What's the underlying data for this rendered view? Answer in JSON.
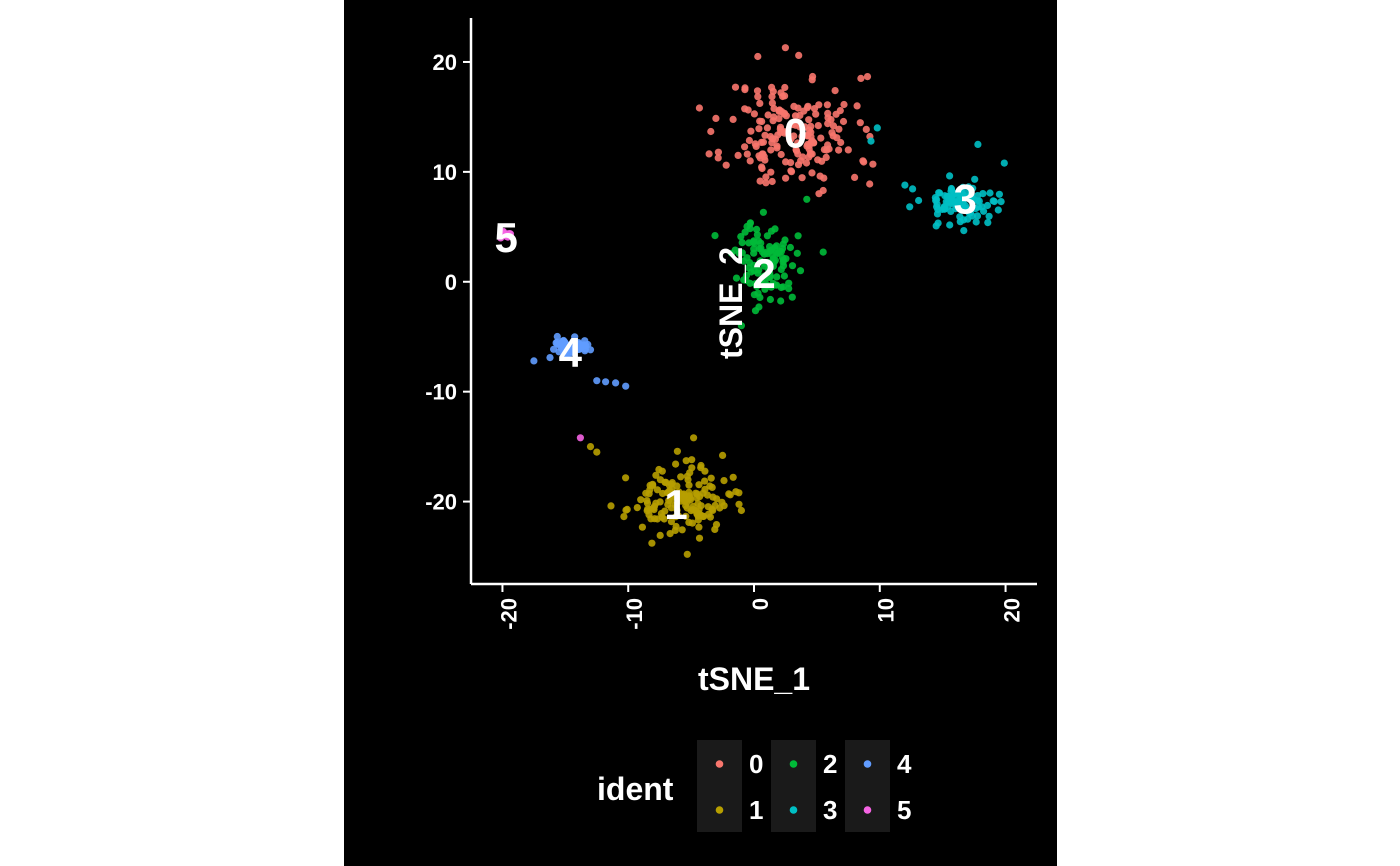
{
  "chart_data": {
    "type": "scatter",
    "xlabel": "tSNE_1",
    "ylabel": "tSNE_2",
    "xlim": [
      -22.5,
      22.5
    ],
    "ylim": [
      -27.5,
      24
    ],
    "x_ticks": [
      -20,
      -10,
      0,
      10,
      20
    ],
    "y_ticks": [
      -20,
      -10,
      0,
      10,
      20
    ],
    "x_tick_labels": [
      "-20",
      "-10",
      "0",
      "10",
      "20"
    ],
    "y_tick_labels": [
      "-20",
      "-10",
      "0",
      "10",
      "20"
    ],
    "grid": false,
    "legend": {
      "title": "ident",
      "position": "bottom"
    },
    "series": [
      {
        "name": "0",
        "color": "#F8766D",
        "label_pos": [
          3.3,
          13.5
        ],
        "center": [
          3.0,
          13.5
        ],
        "spread": [
          4.2,
          4.2
        ],
        "n": 170,
        "seed": 11,
        "points": [
          [
            2.5,
            21.3
          ],
          [
            0.3,
            20.5
          ],
          [
            8.5,
            18.5
          ],
          [
            8.2,
            16
          ],
          [
            7.5,
            12
          ],
          [
            9.2,
            8.9
          ],
          [
            -0.3,
            11
          ],
          [
            5.5,
            8.3
          ],
          [
            8.0,
            9.5
          ]
        ]
      },
      {
        "name": "1",
        "color": "#B79F00",
        "label_pos": [
          -6.2,
          -20.3
        ],
        "center": [
          -6.0,
          -20.0
        ],
        "spread": [
          3.2,
          2.4
        ],
        "n": 150,
        "seed": 23,
        "points": [
          [
            -13.0,
            -15.0
          ],
          [
            -12.5,
            -15.5
          ],
          [
            -2.5,
            -15.8
          ],
          [
            -2.0,
            -19.3
          ],
          [
            -1.2,
            -19.2
          ],
          [
            -5.3,
            -24.8
          ],
          [
            -4.8,
            -14.2
          ]
        ]
      },
      {
        "name": "2",
        "color": "#00BA38",
        "label_pos": [
          0.8,
          0.7
        ],
        "center": [
          1.0,
          1.8
        ],
        "spread": [
          1.9,
          3.0
        ],
        "n": 110,
        "seed": 37,
        "points": [
          [
            -3.1,
            4.2
          ],
          [
            5.5,
            2.7
          ],
          [
            -1.0,
            -4.0
          ],
          [
            4.2,
            7.5
          ]
        ]
      },
      {
        "name": "3",
        "color": "#00BFC4",
        "label_pos": [
          16.8,
          7.5
        ],
        "center": [
          16.5,
          7.3
        ],
        "spread": [
          2.5,
          1.5
        ],
        "n": 100,
        "seed": 53,
        "points": [
          [
            12.0,
            8.8
          ],
          [
            17.8,
            12.5
          ],
          [
            9.8,
            14.0
          ],
          [
            9.3,
            12.8
          ],
          [
            19.9,
            10.8
          ]
        ]
      },
      {
        "name": "4",
        "color": "#619CFF",
        "label_pos": [
          -14.6,
          -6.5
        ],
        "center": [
          -14.5,
          -6.0
        ],
        "spread": [
          1.3,
          0.7
        ],
        "n": 60,
        "seed": 71,
        "points": [
          [
            -12.5,
            -9.0
          ],
          [
            -11.8,
            -9.1
          ],
          [
            -11.0,
            -9.2
          ],
          [
            -10.2,
            -9.5
          ],
          [
            -17.5,
            -7.2
          ]
        ]
      },
      {
        "name": "5",
        "color": "#F564E3",
        "label_pos": [
          -19.7,
          4.0
        ],
        "center": [
          -19.7,
          4.3
        ],
        "spread": [
          0.4,
          0.3
        ],
        "n": 14,
        "seed": 89,
        "points": [
          [
            -13.8,
            -14.2
          ]
        ]
      }
    ]
  }
}
